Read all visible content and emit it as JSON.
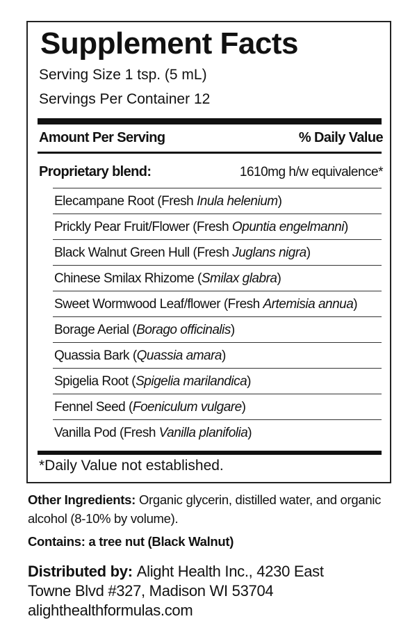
{
  "panel": {
    "title": "Supplement Facts",
    "serving_size": "Serving Size 1 tsp. (5 mL)",
    "servings_per_container": "Servings Per Container 12",
    "header_left": "Amount Per Serving",
    "header_right": "% Daily Value",
    "blend_name": "Proprietary blend:",
    "blend_amount": "1610mg h/w equivalence*",
    "ingredients": [
      [
        {
          "text": "Elecampane Root (Fresh ",
          "italic": false
        },
        {
          "text": "Inula helenium",
          "italic": true
        },
        {
          "text": ")",
          "italic": false
        }
      ],
      [
        {
          "text": "Prickly Pear Fruit/Flower (Fresh ",
          "italic": false
        },
        {
          "text": "Opuntia engelmanni",
          "italic": true
        },
        {
          "text": ")",
          "italic": false
        }
      ],
      [
        {
          "text": "Black Walnut Green Hull (Fresh ",
          "italic": false
        },
        {
          "text": "Juglans nigra",
          "italic": true
        },
        {
          "text": ")",
          "italic": false
        }
      ],
      [
        {
          "text": "Chinese Smilax Rhizome (",
          "italic": false
        },
        {
          "text": "Smilax glabra",
          "italic": true
        },
        {
          "text": ")",
          "italic": false
        }
      ],
      [
        {
          "text": "Sweet Wormwood Leaf/flower (Fresh ",
          "italic": false
        },
        {
          "text": "Artemisia annua",
          "italic": true
        },
        {
          "text": ")",
          "italic": false
        }
      ],
      [
        {
          "text": "Borage Aerial (",
          "italic": false
        },
        {
          "text": "Borago officinalis",
          "italic": true
        },
        {
          "text": ")",
          "italic": false
        }
      ],
      [
        {
          "text": "Quassia Bark (",
          "italic": false
        },
        {
          "text": "Quassia amara",
          "italic": true
        },
        {
          "text": ")",
          "italic": false
        }
      ],
      [
        {
          "text": "Spigelia Root (",
          "italic": false
        },
        {
          "text": "Spigelia marilandica",
          "italic": true
        },
        {
          "text": ")",
          "italic": false
        }
      ],
      [
        {
          "text": "Fennel Seed (",
          "italic": false
        },
        {
          "text": "Foeniculum vulgare",
          "italic": true
        },
        {
          "text": ")",
          "italic": false
        }
      ],
      [
        {
          "text": "Vanilla Pod (Fresh ",
          "italic": false
        },
        {
          "text": "Vanilla planifolia",
          "italic": true
        },
        {
          "text": ")",
          "italic": false
        }
      ]
    ],
    "footnote": "*Daily Value not established."
  },
  "other_ingredients": [
    {
      "text": "Other Ingredients:",
      "bold": true
    },
    {
      "text": "Organic glycerin, distilled water, and organic alcohol (8-10% by volume).",
      "bold": false
    }
  ],
  "contains": "Contains: a tree nut (Black Walnut)",
  "distributor": {
    "label": "Distributed by:",
    "lines": [
      "Alight Health Inc., 4230 East",
      "Towne Blvd #327, Madison WI 53704",
      "alighthealthformulas.com"
    ]
  }
}
